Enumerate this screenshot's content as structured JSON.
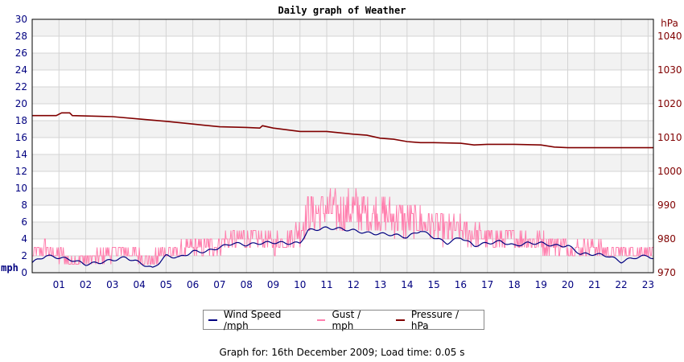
{
  "chart_data": {
    "type": "line",
    "title": "Daily graph of Weather",
    "left_axis": {
      "unit": "mph",
      "min": 0,
      "max": 30,
      "ticks": [
        0,
        2,
        4,
        6,
        8,
        10,
        12,
        14,
        16,
        18,
        20,
        22,
        24,
        26,
        28,
        30
      ]
    },
    "right_axis": {
      "unit": "hPa",
      "min": 970,
      "max": 1045,
      "ticks": [
        970,
        980,
        990,
        1000,
        1010,
        1020,
        1030,
        1040
      ]
    },
    "x": {
      "min": 0,
      "max": 23.2,
      "tick_labels": [
        "01",
        "02",
        "03",
        "04",
        "05",
        "06",
        "07",
        "08",
        "09",
        "10",
        "11",
        "12",
        "13",
        "14",
        "15",
        "16",
        "17",
        "18",
        "19",
        "20",
        "21",
        "22",
        "23"
      ]
    },
    "grid": true,
    "legend_position": "bottom",
    "series": [
      {
        "name": "Wind Speed /mph",
        "color": "#000080",
        "axis": "left",
        "points": [
          [
            0,
            1.2
          ],
          [
            0.5,
            2
          ],
          [
            1,
            1.8
          ],
          [
            1.5,
            1.5
          ],
          [
            2,
            1.0
          ],
          [
            2.5,
            1.2
          ],
          [
            3,
            1.5
          ],
          [
            3.5,
            1.8
          ],
          [
            4,
            1.2
          ],
          [
            4.5,
            0.5
          ],
          [
            5,
            2.0
          ],
          [
            5.5,
            1.8
          ],
          [
            6,
            2.5
          ],
          [
            6.5,
            2.5
          ],
          [
            7,
            3.0
          ],
          [
            7.5,
            3.5
          ],
          [
            8,
            3.3
          ],
          [
            8.5,
            3.5
          ],
          [
            9,
            3.6
          ],
          [
            9.5,
            3.5
          ],
          [
            10,
            3.5
          ],
          [
            10.3,
            5.0
          ],
          [
            11,
            5.3
          ],
          [
            11.5,
            5.2
          ],
          [
            12,
            5.0
          ],
          [
            12.5,
            4.7
          ],
          [
            13,
            4.6
          ],
          [
            13.5,
            4.5
          ],
          [
            14,
            4.2
          ],
          [
            14.5,
            5.0
          ],
          [
            15,
            4.2
          ],
          [
            15.5,
            3.5
          ],
          [
            16,
            4.2
          ],
          [
            16.5,
            3.2
          ],
          [
            17,
            3.5
          ],
          [
            17.5,
            3.7
          ],
          [
            18,
            3.2
          ],
          [
            18.5,
            3.5
          ],
          [
            19,
            3.5
          ],
          [
            19.5,
            3.2
          ],
          [
            20,
            3.2
          ],
          [
            20.5,
            2.2
          ],
          [
            21,
            2.2
          ],
          [
            21.5,
            2.0
          ],
          [
            22,
            1.3
          ],
          [
            22.5,
            1.8
          ],
          [
            23,
            2.0
          ],
          [
            23.2,
            1.7
          ]
        ]
      },
      {
        "name": "Gust / mph",
        "color": "#ff7fae",
        "axis": "left",
        "points": [
          [
            0,
            2
          ],
          [
            0.5,
            3
          ],
          [
            1,
            2
          ],
          [
            1.5,
            1.5
          ],
          [
            2,
            1.5
          ],
          [
            2.5,
            2
          ],
          [
            3,
            2.5
          ],
          [
            3.5,
            2.5
          ],
          [
            4,
            2
          ],
          [
            4.5,
            1.5
          ],
          [
            5,
            2.5
          ],
          [
            5.5,
            2.5
          ],
          [
            6,
            3
          ],
          [
            6.5,
            3
          ],
          [
            7,
            3.5
          ],
          [
            7.5,
            4
          ],
          [
            8,
            4
          ],
          [
            8.5,
            4
          ],
          [
            9,
            3.5
          ],
          [
            9.5,
            4
          ],
          [
            10,
            5
          ],
          [
            10.3,
            7
          ],
          [
            11,
            7.5
          ],
          [
            11.5,
            7
          ],
          [
            12,
            7.5
          ],
          [
            12.5,
            7
          ],
          [
            13,
            7
          ],
          [
            13.5,
            6.5
          ],
          [
            14,
            6
          ],
          [
            14.5,
            6
          ],
          [
            15,
            5.5
          ],
          [
            15.5,
            5
          ],
          [
            16,
            5
          ],
          [
            16.5,
            4.5
          ],
          [
            17,
            4
          ],
          [
            17.5,
            4
          ],
          [
            18,
            4
          ],
          [
            18.5,
            4
          ],
          [
            19,
            3.5
          ],
          [
            19.5,
            3.5
          ],
          [
            20,
            3
          ],
          [
            20.5,
            3
          ],
          [
            21,
            3
          ],
          [
            21.5,
            2.5
          ],
          [
            22,
            2.5
          ],
          [
            22.5,
            2.5
          ],
          [
            23,
            2.5
          ],
          [
            23.2,
            2
          ]
        ],
        "range": {
          "min": 0,
          "max": 11
        }
      },
      {
        "name": "Pressure / hPa",
        "color": "#800000",
        "axis": "right",
        "points": [
          [
            0,
            1016.5
          ],
          [
            0.9,
            1016.5
          ],
          [
            1.1,
            1017.3
          ],
          [
            1.4,
            1017.3
          ],
          [
            1.5,
            1016.5
          ],
          [
            3,
            1016.2
          ],
          [
            4,
            1015.5
          ],
          [
            5,
            1014.8
          ],
          [
            6,
            1014.0
          ],
          [
            7,
            1013.2
          ],
          [
            8,
            1013.0
          ],
          [
            8.5,
            1012.8
          ],
          [
            8.6,
            1013.5
          ],
          [
            9,
            1012.8
          ],
          [
            10,
            1011.8
          ],
          [
            11,
            1011.8
          ],
          [
            12,
            1011.0
          ],
          [
            12.5,
            1010.7
          ],
          [
            13,
            1009.8
          ],
          [
            13.5,
            1009.5
          ],
          [
            14,
            1008.8
          ],
          [
            14.5,
            1008.5
          ],
          [
            15,
            1008.5
          ],
          [
            16,
            1008.3
          ],
          [
            16.5,
            1007.8
          ],
          [
            17,
            1008.0
          ],
          [
            18,
            1008.0
          ],
          [
            19,
            1007.8
          ],
          [
            19.5,
            1007.2
          ],
          [
            20,
            1007.0
          ],
          [
            21,
            1007.0
          ],
          [
            22,
            1007.0
          ],
          [
            23.2,
            1007.0
          ]
        ]
      }
    ]
  },
  "footer": "Graph for: 16th December 2009; Load time: 0.05 s"
}
